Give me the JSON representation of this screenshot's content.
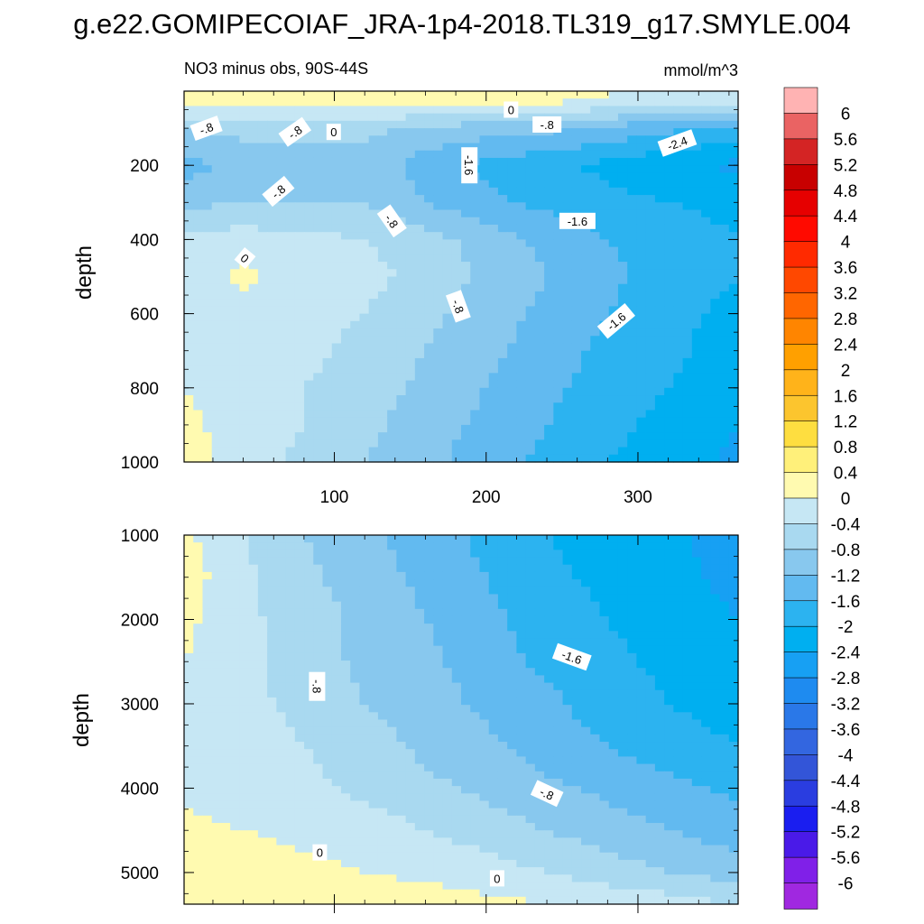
{
  "title": "g.e22.GOMIPECOIAF_JRA-1p4-2018.TL319_g17.SMYLE.004",
  "subtitle_left": "NO3 minus obs, 90S-44S",
  "units": "mmol/m^3",
  "chart_data": [
    {
      "type": "heatmap",
      "panel": "upper",
      "title": "NO3 minus obs, 90S-44S",
      "units": "mmol/m^3",
      "xlabel": "",
      "ylabel": "depth",
      "xlim": [
        1,
        366
      ],
      "ylim": [
        1000,
        0
      ],
      "xticks": [
        100,
        200,
        300
      ],
      "yticks": [
        200,
        400,
        600,
        800,
        1000
      ],
      "x": [
        1,
        40,
        80,
        120,
        160,
        200,
        240,
        280,
        320,
        366
      ],
      "y": [
        25,
        100,
        200,
        300,
        400,
        500,
        600,
        700,
        800,
        900,
        1000
      ],
      "z": [
        [
          0.2,
          0.2,
          0.3,
          0.3,
          0.2,
          0.2,
          0.1,
          0.0,
          -0.2,
          -0.2
        ],
        [
          -0.8,
          -0.7,
          -0.7,
          -0.7,
          -0.9,
          -1.0,
          -1.1,
          -1.3,
          -1.5,
          -1.7
        ],
        [
          -1.4,
          -1.0,
          -0.9,
          -0.9,
          -1.4,
          -1.7,
          -1.9,
          -2.1,
          -2.3,
          -2.5
        ],
        [
          -0.9,
          -0.8,
          -0.8,
          -0.8,
          -1.2,
          -1.5,
          -1.7,
          -1.9,
          -2.0,
          -2.1
        ],
        [
          -0.3,
          -0.2,
          -0.3,
          -0.4,
          -0.6,
          -1.0,
          -1.3,
          -1.6,
          -1.8,
          -2.0
        ],
        [
          -0.2,
          0.1,
          -0.2,
          -0.3,
          -0.5,
          -0.9,
          -1.2,
          -1.5,
          -1.8,
          -2.0
        ],
        [
          -0.2,
          -0.2,
          -0.3,
          -0.4,
          -0.7,
          -1.0,
          -1.3,
          -1.6,
          -1.9,
          -2.1
        ],
        [
          -0.1,
          -0.2,
          -0.3,
          -0.5,
          -0.8,
          -1.1,
          -1.4,
          -1.7,
          -1.9,
          -2.2
        ],
        [
          0.0,
          -0.2,
          -0.4,
          -0.6,
          -0.9,
          -1.2,
          -1.5,
          -1.8,
          -2.0,
          -2.3
        ],
        [
          0.1,
          -0.2,
          -0.4,
          -0.7,
          -1.0,
          -1.3,
          -1.6,
          -1.9,
          -2.1,
          -2.4
        ],
        [
          0.2,
          -0.2,
          -0.5,
          -0.8,
          -1.1,
          -1.4,
          -1.7,
          -2.0,
          -2.2,
          -2.5
        ]
      ],
      "contour_labels": [
        "-.8",
        "0",
        "-.8",
        "0",
        "-.8",
        "-1.6",
        "-2.4",
        "-.8",
        "-.8",
        "-1.6",
        "0",
        "-.8",
        "-1.6"
      ]
    },
    {
      "type": "heatmap",
      "panel": "lower",
      "title": "",
      "xlabel": "",
      "ylabel": "depth",
      "xlim": [
        1,
        366
      ],
      "ylim": [
        1000,
        5375
      ],
      "yticks": [
        1000,
        2000,
        3000,
        4000,
        5000
      ],
      "x": [
        1,
        40,
        80,
        120,
        160,
        200,
        240,
        280,
        320,
        366
      ],
      "y": [
        1000,
        1500,
        2000,
        2500,
        3000,
        3500,
        4000,
        4500,
        5000,
        5375
      ],
      "z": [
        [
          0.1,
          -0.4,
          -0.8,
          -1.1,
          -1.4,
          -1.7,
          -2.0,
          -2.2,
          -2.3,
          -2.6
        ],
        [
          0.2,
          -0.3,
          -0.7,
          -1.0,
          -1.3,
          -1.6,
          -1.9,
          -2.1,
          -2.3,
          -2.5
        ],
        [
          0.1,
          -0.3,
          -0.6,
          -0.9,
          -1.2,
          -1.5,
          -1.8,
          -2.0,
          -2.2,
          -2.4
        ],
        [
          0.0,
          -0.3,
          -0.6,
          -0.9,
          -1.1,
          -1.4,
          -1.7,
          -1.9,
          -2.1,
          -2.3
        ],
        [
          -0.1,
          -0.3,
          -0.5,
          -0.8,
          -1.0,
          -1.3,
          -1.5,
          -1.8,
          -2.0,
          -2.2
        ],
        [
          -0.1,
          -0.2,
          -0.4,
          -0.6,
          -0.9,
          -1.1,
          -1.4,
          -1.6,
          -1.8,
          -2.0
        ],
        [
          -0.1,
          -0.2,
          -0.3,
          -0.5,
          -0.7,
          -0.9,
          -1.1,
          -1.3,
          -1.5,
          -1.7
        ],
        [
          0.1,
          0.0,
          -0.1,
          -0.2,
          -0.4,
          -0.6,
          -0.8,
          -1.0,
          -1.2,
          -1.4
        ],
        [
          0.1,
          0.2,
          0.1,
          0.0,
          -0.1,
          -0.2,
          -0.4,
          -0.6,
          -0.8,
          -1.0
        ],
        [
          0.3,
          0.3,
          0.3,
          0.2,
          0.2,
          0.1,
          0.0,
          -0.1,
          -0.2,
          -0.4
        ]
      ],
      "contour_labels": [
        "-.8",
        "-1.6",
        "-.8",
        "0",
        "0"
      ]
    }
  ],
  "colorbar": {
    "labels": [
      "6",
      "5.6",
      "5.2",
      "4.8",
      "4.4",
      "4",
      "3.6",
      "3.2",
      "2.8",
      "2.4",
      "2",
      "1.6",
      "1.2",
      "0.8",
      "0.4",
      "0",
      "-0.4",
      "-0.8",
      "-1.2",
      "-1.6",
      "-2",
      "-2.4",
      "-2.8",
      "-3.2",
      "-3.6",
      "-4",
      "-4.4",
      "-4.8",
      "-5.2",
      "-5.6",
      "-6"
    ],
    "colors": [
      "#ffb3b3",
      "#ea6363",
      "#d42424",
      "#c80000",
      "#e60000",
      "#ff0a00",
      "#ff2a00",
      "#ff4800",
      "#ff6600",
      "#ff8500",
      "#ffa000",
      "#ffb31a",
      "#fcc52e",
      "#fede40",
      "#fff07a",
      "#fffab0",
      "#c6e7f4",
      "#a9d9f0",
      "#88c8ee",
      "#62baf0",
      "#2cb3f0",
      "#00aff0",
      "#17a0f3",
      "#1e8bf0",
      "#2a78e8",
      "#3366e0",
      "#3355d8",
      "#2a3de0",
      "#1a1ef0",
      "#4a1ae8",
      "#8020e8",
      "#a028e0"
    ]
  }
}
